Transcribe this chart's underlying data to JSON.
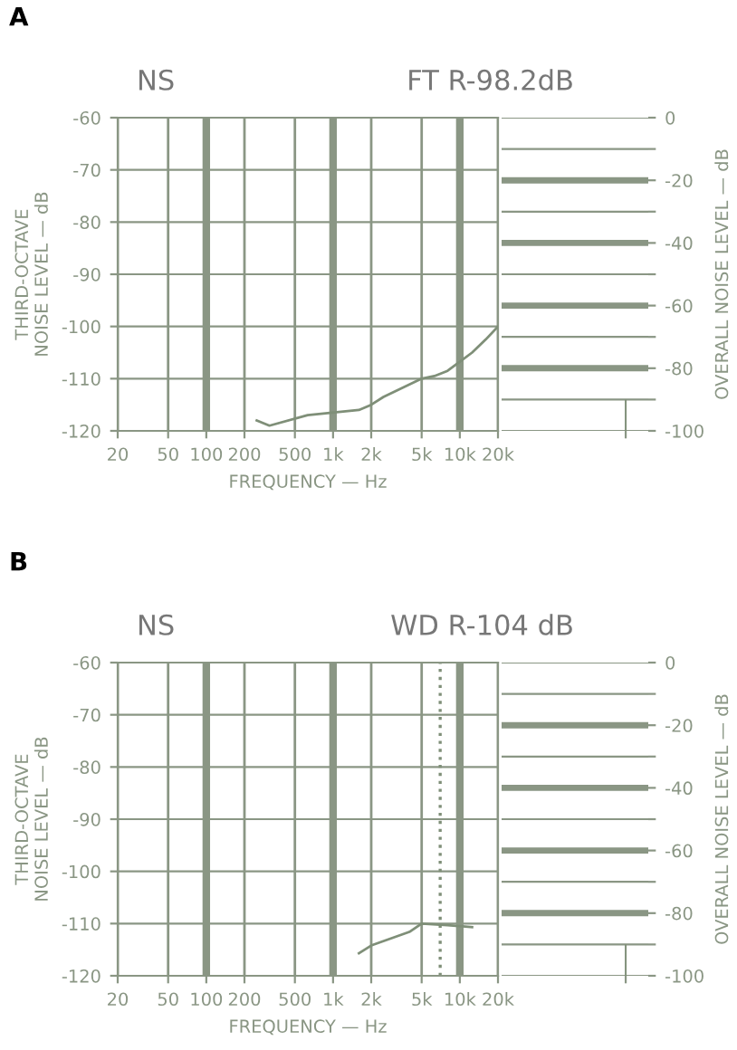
{
  "chart_data": [
    {
      "type": "line",
      "title": "NS",
      "subtitle": "FT R-98.2dB",
      "annotations": [
        "A"
      ],
      "xlabel": "FREQUENCY — Hz",
      "ylabel": "THIRD-OCTAVE\nNOISE LEVEL — dB",
      "log": "x",
      "grid": true,
      "line_style": "solid",
      "x": [
        250,
        315,
        630,
        1600,
        2000,
        2500,
        5000,
        6300,
        8000,
        12500,
        16000,
        20000
      ],
      "series": [
        {
          "color": "#7f8f78",
          "values": [
            -118,
            -119,
            -117,
            -116,
            -115,
            -113.5,
            -110,
            -109.5,
            -108.5,
            -105,
            -102.5,
            -100
          ]
        }
      ],
      "xlim": [
        20,
        20000
      ],
      "xticks": [
        {
          "value": 20,
          "label": "20"
        },
        {
          "value": 50,
          "label": "50"
        },
        {
          "value": 100,
          "label": "100"
        },
        {
          "value": 200,
          "label": "200"
        },
        {
          "value": 500,
          "label": "500"
        },
        {
          "value": 1000,
          "label": "1k"
        },
        {
          "value": 2000,
          "label": "2k"
        },
        {
          "value": 5000,
          "label": "5k"
        },
        {
          "value": 10000,
          "label": "10k"
        },
        {
          "value": 20000,
          "label": "20k"
        }
      ],
      "ylim": [
        -120,
        -60
      ],
      "yticks": [
        -120,
        -110,
        -100,
        -90,
        -80,
        -70,
        -60
      ]
    },
    {
      "type": "bar",
      "ylabel": "OVERALL NOISE LEVEL — dB",
      "categories": [
        null
      ],
      "values": [
        10
      ],
      "base": [
        -100
      ],
      "colors": [
        "#7f8f78"
      ],
      "grid": "y",
      "tick_labels": "y",
      "ylim": [
        -100,
        0
      ],
      "yticks": [
        -100,
        {
          "value": -90,
          "label": null
        },
        -80,
        {
          "value": -70,
          "label": null
        },
        -60,
        {
          "value": -50,
          "label": null
        },
        -40,
        {
          "value": -30,
          "label": null
        },
        -20,
        {
          "value": -10,
          "label": null
        },
        0
      ]
    },
    {
      "type": "line",
      "title": "NS",
      "subtitle": "WD R-104 dB",
      "annotations": [
        "B"
      ],
      "xlabel": "FREQUENCY — Hz",
      "ylabel": "THIRD-OCTAVE\nNOISE LEVEL — dB",
      "log": "x",
      "grid": true,
      "line_style": "solid",
      "x": [
        1600,
        2000,
        4000,
        5000,
        8000,
        12500
      ],
      "series": [
        {
          "color": "#7f8f78",
          "values": [
            -115.7,
            -114.2,
            -111.6,
            -110,
            -110.3,
            -110.7
          ]
        }
      ],
      "ref_lines": [
        {
          "axis": "x",
          "value": 7000,
          "line_style": "dotted",
          "color": "#7f8f78"
        }
      ],
      "xlim": [
        20,
        20000
      ],
      "xticks": [
        {
          "value": 20,
          "label": "20"
        },
        {
          "value": 50,
          "label": "50"
        },
        {
          "value": 100,
          "label": "100"
        },
        {
          "value": 200,
          "label": "200"
        },
        {
          "value": 500,
          "label": "500"
        },
        {
          "value": 1000,
          "label": "1k"
        },
        {
          "value": 2000,
          "label": "2k"
        },
        {
          "value": 5000,
          "label": "5k"
        },
        {
          "value": 10000,
          "label": "10k"
        },
        {
          "value": 20000,
          "label": "20k"
        }
      ],
      "ylim": [
        -120,
        -60
      ],
      "yticks": [
        -120,
        -110,
        -100,
        -90,
        -80,
        -70,
        -60
      ]
    },
    {
      "type": "bar",
      "ylabel": "OVERALL NOISE LEVEL — dB",
      "categories": [
        null
      ],
      "values": [
        10
      ],
      "base": [
        -100
      ],
      "colors": [
        "#7f8f78"
      ],
      "grid": "y",
      "tick_labels": "y",
      "ylim": [
        -100,
        0
      ],
      "yticks": [
        -100,
        {
          "value": -90,
          "label": null
        },
        -80,
        {
          "value": -70,
          "label": null
        },
        -60,
        {
          "value": -50,
          "label": null
        },
        -40,
        {
          "value": -30,
          "label": null
        },
        -20,
        {
          "value": -10,
          "label": null
        },
        0
      ]
    }
  ]
}
